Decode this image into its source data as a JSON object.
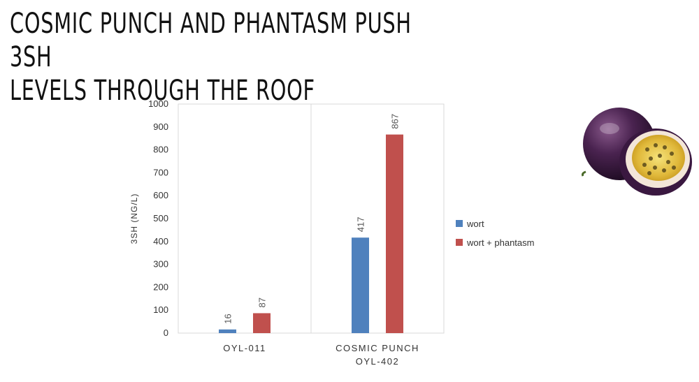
{
  "slide": {
    "title_lines": [
      "COSMIC PUNCH AND PHANTASM PUSH 3SH",
      "LEVELS THROUGH THE ROOF"
    ]
  },
  "chart_data": {
    "type": "bar",
    "title": "",
    "xlabel": "",
    "ylabel": "3SH (NG/L)",
    "ylim": [
      0,
      1000
    ],
    "yticks": [
      0,
      100,
      200,
      300,
      400,
      500,
      600,
      700,
      800,
      900,
      1000
    ],
    "categories": [
      {
        "lines": [
          "OYL-011"
        ]
      },
      {
        "lines": [
          "COSMIC PUNCH",
          "OYL-402"
        ]
      }
    ],
    "series": [
      {
        "name": "wort",
        "color": "#4f81bd",
        "values": [
          16,
          417
        ]
      },
      {
        "name": "wort + phantasm",
        "color": "#c0504d",
        "values": [
          87,
          867
        ]
      }
    ],
    "data_labels": true,
    "grid": false,
    "legend_position": "right"
  },
  "decor": {
    "image_icon": "passion-fruit-icon"
  }
}
